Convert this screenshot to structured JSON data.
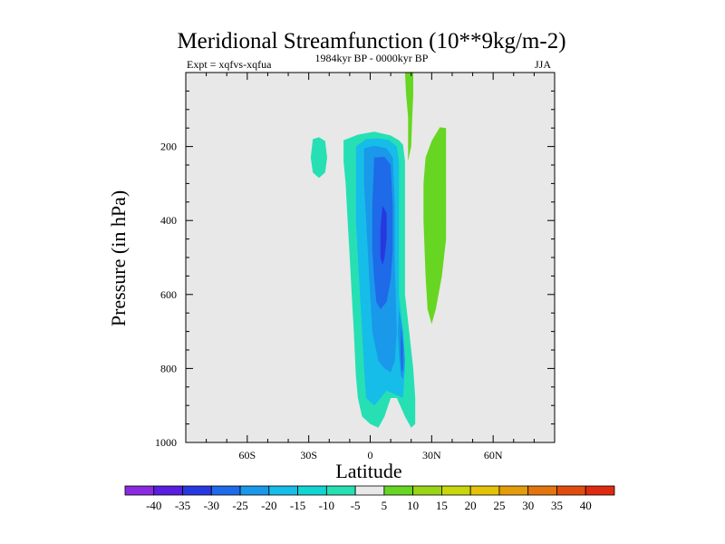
{
  "chart_data": {
    "type": "contour",
    "title": "Meridional Streamfunction (10**9kg/m-2)",
    "left_label": "Expt = xqfvs-xqfua",
    "center_label": "1984kyr BP - 0000kyr BP",
    "right_label": "JJA",
    "xlabel": "Latitude",
    "ylabel": "Pressure (in hPa)",
    "xlim": [
      -90,
      90
    ],
    "ylim": [
      1000,
      0
    ],
    "x_ticks": [
      {
        "value": -60,
        "label": "60S"
      },
      {
        "value": -30,
        "label": "30S"
      },
      {
        "value": 0,
        "label": "0"
      },
      {
        "value": 30,
        "label": "30N"
      },
      {
        "value": 60,
        "label": "60N"
      }
    ],
    "y_ticks": [
      {
        "value": 200,
        "label": "200"
      },
      {
        "value": 400,
        "label": "400"
      },
      {
        "value": 600,
        "label": "600"
      },
      {
        "value": 800,
        "label": "800"
      },
      {
        "value": 1000,
        "label": "1000"
      }
    ],
    "colorbar": {
      "levels": [
        "-40",
        "-35",
        "-30",
        "-25",
        "-20",
        "-15",
        "-10",
        "-5",
        "5",
        "10",
        "15",
        "20",
        "25",
        "30",
        "35",
        "40"
      ],
      "colors": [
        "#8a2be2",
        "#5a1ee0",
        "#2838e0",
        "#1e6ae8",
        "#1a98ea",
        "#16bde8",
        "#12d4d2",
        "#26e0b4",
        "#e8e8e8",
        "#66d622",
        "#9ad416",
        "#c8d60e",
        "#e4c208",
        "#e49c0a",
        "#e2760c",
        "#e04c0e",
        "#de2a10"
      ]
    },
    "contours": [
      {
        "name": "negative -5 to -10 cell",
        "level_color": "#26e0b4",
        "lat_pressure": [
          [
            -13,
            183
          ],
          [
            -6,
            168
          ],
          [
            2,
            160
          ],
          [
            10,
            170
          ],
          [
            14,
            183
          ],
          [
            16,
            195
          ],
          [
            17,
            240
          ],
          [
            17,
            600
          ],
          [
            19,
            700
          ],
          [
            21,
            800
          ],
          [
            22,
            880
          ],
          [
            22,
            950
          ],
          [
            20,
            960
          ],
          [
            17,
            930
          ],
          [
            13,
            880
          ],
          [
            10,
            880
          ],
          [
            7,
            930
          ],
          [
            4,
            960
          ],
          [
            0,
            950
          ],
          [
            -4,
            930
          ],
          [
            -6,
            880
          ],
          [
            -7,
            820
          ],
          [
            -8,
            700
          ],
          [
            -9,
            600
          ],
          [
            -10,
            500
          ],
          [
            -11,
            400
          ],
          [
            -12,
            300
          ],
          [
            -13,
            240
          ]
        ]
      },
      {
        "name": "negative -10 to -15 cell",
        "level_color": "#16bde8",
        "lat_pressure": [
          [
            -7,
            200
          ],
          [
            -2,
            180
          ],
          [
            4,
            178
          ],
          [
            9,
            182
          ],
          [
            13,
            200
          ],
          [
            14,
            240
          ],
          [
            14,
            600
          ],
          [
            16,
            700
          ],
          [
            17,
            800
          ],
          [
            16,
            880
          ],
          [
            12,
            870
          ],
          [
            8,
            860
          ],
          [
            5,
            880
          ],
          [
            2,
            900
          ],
          [
            -2,
            880
          ],
          [
            -3,
            800
          ],
          [
            -4,
            700
          ],
          [
            -5,
            600
          ],
          [
            -6,
            500
          ],
          [
            -7,
            400
          ],
          [
            -7,
            300
          ]
        ]
      },
      {
        "name": "negative -15 to -20 cell",
        "level_color": "#1a98ea",
        "lat_pressure": [
          [
            -3,
            205
          ],
          [
            2,
            198
          ],
          [
            8,
            205
          ],
          [
            11,
            230
          ],
          [
            12,
            350
          ],
          [
            12,
            520
          ],
          [
            13,
            700
          ],
          [
            12,
            780
          ],
          [
            10,
            810
          ],
          [
            7,
            800
          ],
          [
            4,
            780
          ],
          [
            1,
            700
          ],
          [
            0,
            600
          ],
          [
            -1,
            500
          ],
          [
            -2,
            400
          ],
          [
            -3,
            300
          ]
        ]
      },
      {
        "name": "negative -20 to -25 cell",
        "level_color": "#1e6ae8",
        "lat_pressure": [
          [
            2,
            230
          ],
          [
            7,
            228
          ],
          [
            10,
            250
          ],
          [
            11,
            360
          ],
          [
            11,
            480
          ],
          [
            10,
            560
          ],
          [
            8,
            620
          ],
          [
            5,
            640
          ],
          [
            3,
            620
          ],
          [
            2,
            560
          ],
          [
            1,
            480
          ],
          [
            1,
            360
          ]
        ]
      },
      {
        "name": "negative -25 to -30 cell",
        "level_color": "#2838e0",
        "lat_pressure": [
          [
            6,
            360
          ],
          [
            8,
            380
          ],
          [
            8,
            450
          ],
          [
            7,
            500
          ],
          [
            6,
            520
          ],
          [
            5,
            500
          ],
          [
            5,
            420
          ]
        ]
      },
      {
        "name": "lower strand -15 cell",
        "level_color": "#1a98ea",
        "lat_pressure": [
          [
            14,
            640
          ],
          [
            16,
            700
          ],
          [
            17,
            780
          ],
          [
            16,
            830
          ],
          [
            15,
            820
          ],
          [
            14,
            760
          ],
          [
            13.5,
            700
          ]
        ]
      },
      {
        "name": "lower strand -25 cell",
        "level_color": "#1e6ae8",
        "lat_pressure": [
          [
            15,
            690
          ],
          [
            16,
            740
          ],
          [
            16,
            800
          ],
          [
            15.3,
            810
          ],
          [
            14.8,
            760
          ]
        ]
      },
      {
        "name": "southern -5 cell",
        "level_color": "#26e0b4",
        "lat_pressure": [
          [
            -28,
            180
          ],
          [
            -25,
            175
          ],
          [
            -22,
            185
          ],
          [
            -21,
            230
          ],
          [
            -22,
            270
          ],
          [
            -25,
            285
          ],
          [
            -28,
            270
          ],
          [
            -29,
            230
          ]
        ]
      },
      {
        "name": "northern positive 5 cell",
        "level_color": "#66d622",
        "lat_pressure": [
          [
            27,
            230
          ],
          [
            30,
            185
          ],
          [
            34,
            148
          ],
          [
            37,
            150
          ],
          [
            37,
            300
          ],
          [
            37,
            450
          ],
          [
            35,
            550
          ],
          [
            32,
            640
          ],
          [
            30,
            680
          ],
          [
            28,
            640
          ],
          [
            27,
            550
          ],
          [
            26,
            400
          ],
          [
            26,
            300
          ]
        ]
      },
      {
        "name": "narrow upper positive 5 plume",
        "level_color": "#66d622",
        "lat_pressure": [
          [
            17,
            0
          ],
          [
            21,
            0
          ],
          [
            21,
            60
          ],
          [
            20.5,
            120
          ],
          [
            20,
            200
          ],
          [
            18.5,
            240
          ],
          [
            18.5,
            120
          ],
          [
            17.5,
            60
          ]
        ]
      }
    ]
  }
}
